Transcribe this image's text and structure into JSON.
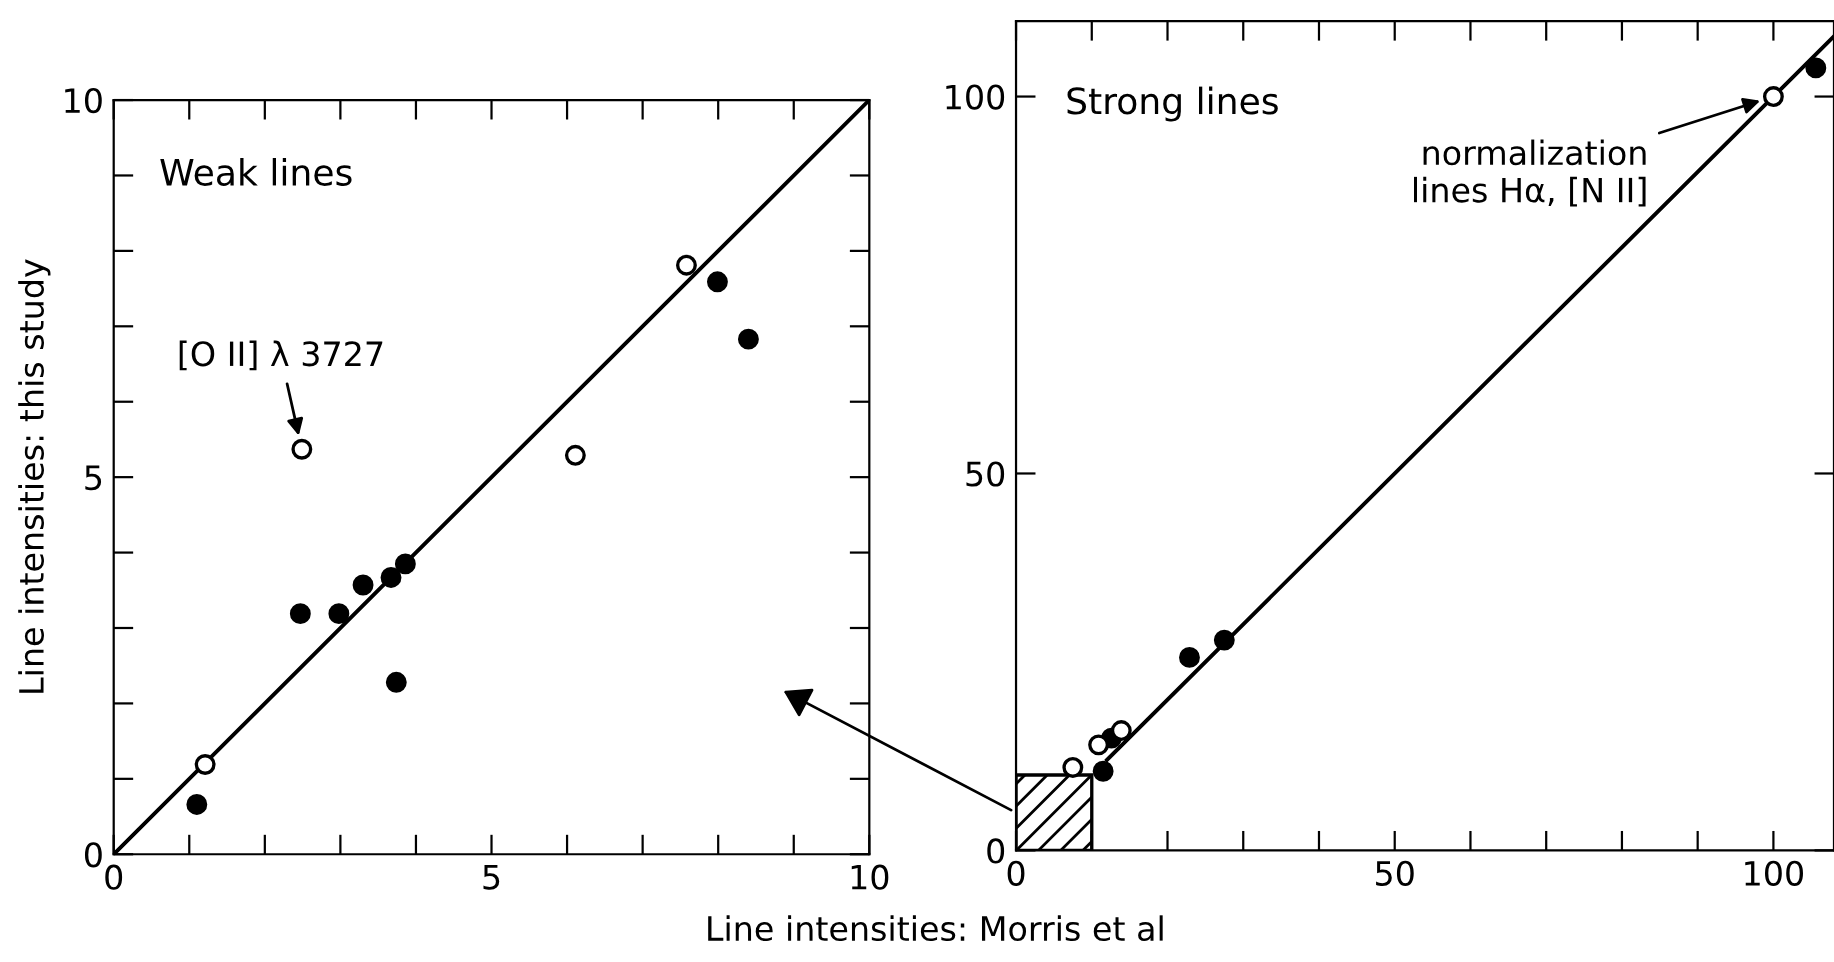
{
  "chart_data": [
    {
      "type": "scatter",
      "title": "Weak lines",
      "xlabel": "Line intensities: Morris et al",
      "ylabel": "Line intensities: this study",
      "xlim": [
        0,
        10
      ],
      "ylim": [
        0,
        10
      ],
      "xticks": [
        0,
        {
          "value": 1,
          "label": null
        },
        {
          "value": 2,
          "label": null
        },
        {
          "value": 3,
          "label": null
        },
        {
          "value": 4,
          "label": null
        },
        5,
        {
          "value": 6,
          "label": null
        },
        {
          "value": 7,
          "label": null
        },
        {
          "value": 8,
          "label": null
        },
        {
          "value": 9,
          "label": null
        },
        10
      ],
      "yticks": [
        0,
        {
          "value": 1,
          "label": null
        },
        {
          "value": 2,
          "label": null
        },
        {
          "value": 3,
          "label": null
        },
        {
          "value": 4,
          "label": null
        },
        5,
        {
          "value": 6,
          "label": null
        },
        {
          "value": 7,
          "label": null
        },
        {
          "value": 8,
          "label": null
        },
        {
          "value": 9,
          "label": null
        },
        10
      ],
      "grid": false,
      "annotations": [
        {
          "text": "[O II] λ 3727",
          "x": 2.49,
          "y": 5.37
        }
      ],
      "series": [
        {
          "marker": "circle",
          "color": "#000000",
          "x": [
            1.1,
            2.47,
            2.98,
            3.3,
            3.67,
            3.86,
            3.74,
            7.99,
            8.4
          ],
          "values": [
            0.66,
            3.19,
            3.19,
            3.57,
            3.67,
            3.85,
            2.28,
            7.59,
            6.83
          ]
        },
        {
          "marker": "circle",
          "color": "#ffffff",
          "x": [
            1.21,
            2.49,
            6.11,
            7.58
          ],
          "values": [
            1.19,
            5.37,
            5.29,
            7.81
          ]
        },
        {
          "type": "line",
          "color": "#000000",
          "x": [
            0,
            10
          ],
          "values": [
            0,
            10
          ]
        }
      ]
    },
    {
      "type": "scatter",
      "title": "Strong lines",
      "xlim": [
        0,
        108
      ],
      "ylim": [
        0,
        110
      ],
      "xticks": [
        0,
        {
          "value": 10,
          "label": null
        },
        {
          "value": 20,
          "label": null
        },
        {
          "value": 30,
          "label": null
        },
        {
          "value": 40,
          "label": null
        },
        50,
        {
          "value": 60,
          "label": null
        },
        {
          "value": 70,
          "label": null
        },
        {
          "value": 80,
          "label": null
        },
        {
          "value": 90,
          "label": null
        },
        100
      ],
      "yticks": [
        0,
        50,
        100
      ],
      "grid": false,
      "annotations": [
        {
          "text": "normalization\nlines Hα, [N II]",
          "x": 100,
          "y": 100
        }
      ],
      "series": [
        {
          "marker": "circle",
          "color": "#000000",
          "x": [
            11.5,
            12.6,
            22.9,
            27.5,
            105.6
          ],
          "values": [
            10.5,
            14.9,
            25.6,
            27.9,
            103.8
          ]
        },
        {
          "marker": "circle",
          "color": "#ffffff",
          "x": [
            7.5,
            10.9,
            13.9,
            100
          ],
          "values": [
            11.0,
            14.0,
            15.9,
            100
          ]
        },
        {
          "type": "line",
          "color": "#000000",
          "x": [
            12,
            108
          ],
          "values": [
            12,
            108
          ]
        }
      ]
    }
  ]
}
